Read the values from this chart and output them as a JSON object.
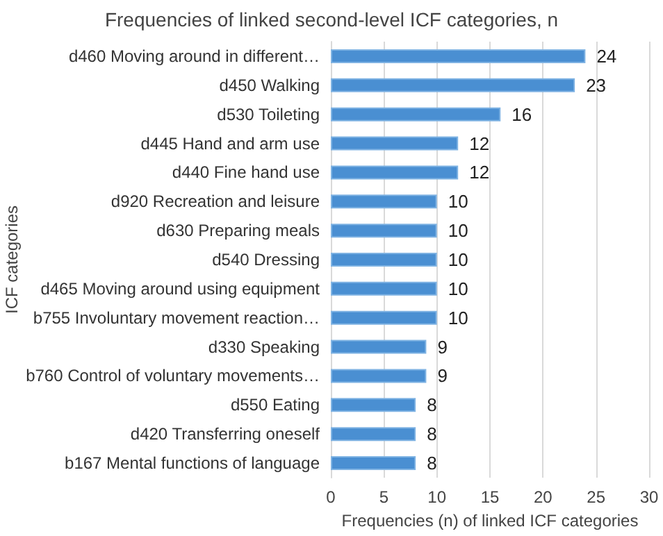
{
  "chart_data": {
    "type": "bar",
    "orientation": "horizontal",
    "title": "Frequencies of linked second-level ICF categories, n",
    "xlabel": "Frequencies (n) of linked ICF categories",
    "ylabel": "ICF categories",
    "categories": [
      "d460 Moving around in different…",
      "d450 Walking",
      "d530 Toileting",
      "d445 Hand and arm use",
      "d440 Fine hand use",
      "d920 Recreation and leisure",
      "d630 Preparing meals",
      "d540 Dressing",
      "d465 Moving around using equipment",
      "b755 Involuntary movement reaction…",
      "d330 Speaking",
      "b760 Control of voluntary movements…",
      "d550 Eating",
      "d420 Transferring oneself",
      "b167 Mental functions of language"
    ],
    "values": [
      24,
      23,
      16,
      12,
      12,
      10,
      10,
      10,
      10,
      10,
      9,
      9,
      8,
      8,
      8
    ],
    "color": "#4a8fd2",
    "xlim": [
      0,
      30
    ],
    "xticks": [
      0,
      5,
      10,
      15,
      20,
      25,
      30
    ],
    "grid": "x",
    "data_labels": true
  }
}
